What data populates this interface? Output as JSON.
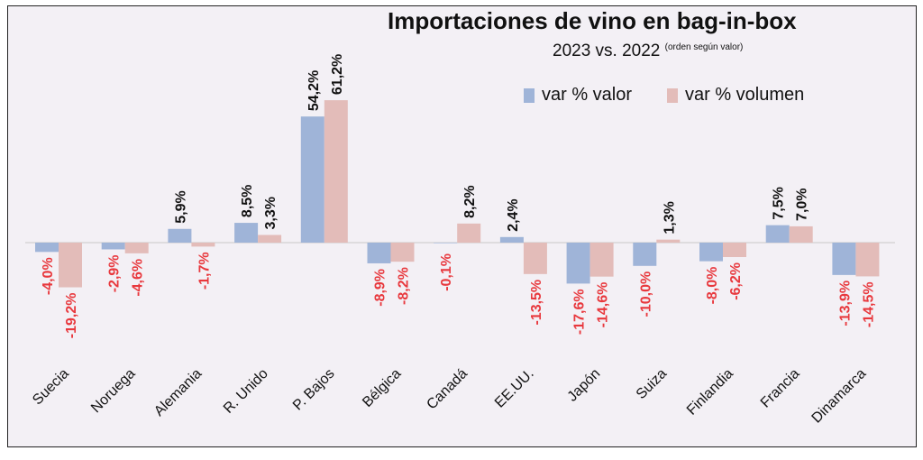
{
  "chart_data": {
    "type": "bar",
    "title": "Importaciones de vino en bag-in-box",
    "subtitle": "2023 vs. 2022",
    "subtitle_note": "(orden según valor)",
    "categories": [
      "Suecia",
      "Noruega",
      "Alemania",
      "R. Unido",
      "P. Bajos",
      "Bélgica",
      "Canadá",
      "EE.UU.",
      "Japón",
      "Suiza",
      "Finlandia",
      "Francia",
      "Dinamarca"
    ],
    "series": [
      {
        "name": "var % valor",
        "color": "#9fb4d8",
        "values": [
          -4.0,
          -2.9,
          5.9,
          8.5,
          54.2,
          -8.9,
          -0.1,
          2.4,
          -17.6,
          -10.0,
          -8.0,
          7.5,
          -13.9
        ],
        "labels": [
          "-4,0%",
          "-2,9%",
          "5,9%",
          "8,5%",
          "54,2%",
          "-8,9%",
          "",
          "2,4%",
          "-17,6%",
          "-10,0%",
          "-8,0%",
          "7,5%",
          "-13,9%"
        ]
      },
      {
        "name": "var % volumen",
        "color": "#e3bcb9",
        "values": [
          -19.2,
          -4.6,
          -1.7,
          3.3,
          61.2,
          -8.2,
          8.2,
          -13.5,
          -14.6,
          1.3,
          -6.2,
          7.0,
          -14.5
        ],
        "labels": [
          "-19,2%",
          "-4,6%",
          "-1,7%",
          "3,3%",
          "61,2%",
          "-8,2%",
          "8,2%",
          "-13,5%",
          "-14,6%",
          "1,3%",
          "-6,2%",
          "7,0%",
          "-14,5%"
        ]
      }
    ],
    "extra_labels": [
      {
        "category": "Canadá",
        "text": "-0,1%"
      }
    ],
    "ylabel": "",
    "xlabel": "",
    "positive_label_color": "#111111",
    "negative_label_color": "#e8383d",
    "grid": false,
    "legend": "top-right"
  }
}
